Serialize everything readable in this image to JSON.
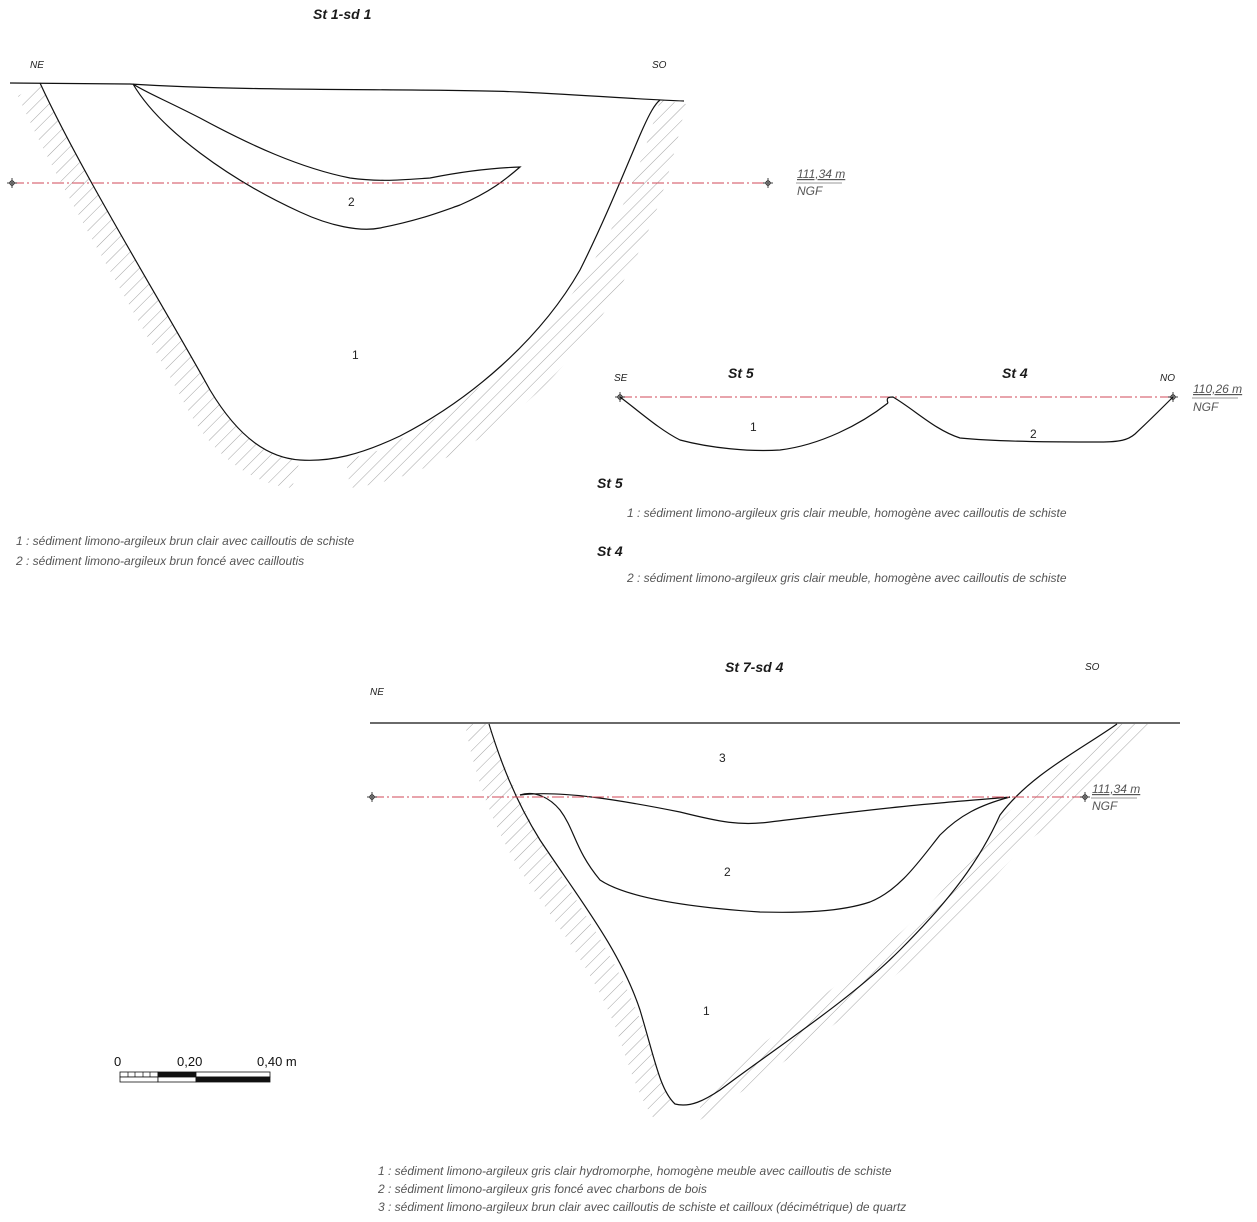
{
  "section1": {
    "title": "St 1-sd 1",
    "orient_left": "NE",
    "orient_right": "SO",
    "level": "111,34 m",
    "level_ref": "NGF",
    "unit_labels": [
      "1",
      "2"
    ],
    "legend": [
      "1 : sédiment limono-argileux brun clair avec cailloutis de schiste",
      "2 : sédiment limono-argileux brun foncé avec cailloutis"
    ]
  },
  "section2": {
    "title_left": "St 5",
    "title_right": "St 4",
    "orient_left": "SE",
    "orient_right": "NO",
    "level": "110,26 m",
    "level_ref": "NGF",
    "unit_labels": [
      "1",
      "2"
    ],
    "legend_groups": [
      {
        "heading": "St 5",
        "text": "1 : sédiment limono-argileux gris clair meuble, homogène avec cailloutis de schiste"
      },
      {
        "heading": "St 4",
        "text": "2 : sédiment limono-argileux gris clair meuble, homogène avec cailloutis de schiste"
      }
    ]
  },
  "section3": {
    "title": "St 7-sd 4",
    "orient_left": "NE",
    "orient_right": "SO",
    "level": "111,34 m",
    "level_ref": "NGF",
    "unit_labels": [
      "3",
      "2",
      "1"
    ],
    "legend": [
      "1 : sédiment limono-argileux gris clair hydromorphe, homogène meuble avec cailloutis de schiste",
      "2 : sédiment limono-argileux gris foncé avec charbons de bois",
      "3 : sédiment limono-argileux brun clair avec cailloutis de schiste et cailloux (décimétrique) de quartz"
    ]
  },
  "scale": {
    "labels": [
      "0",
      "0,20",
      "0,40 m"
    ]
  },
  "colors": {
    "datum_line": "#d14a5a",
    "outline": "#111111",
    "hatch": "#9a9a9a",
    "legend_text": "#555555"
  }
}
